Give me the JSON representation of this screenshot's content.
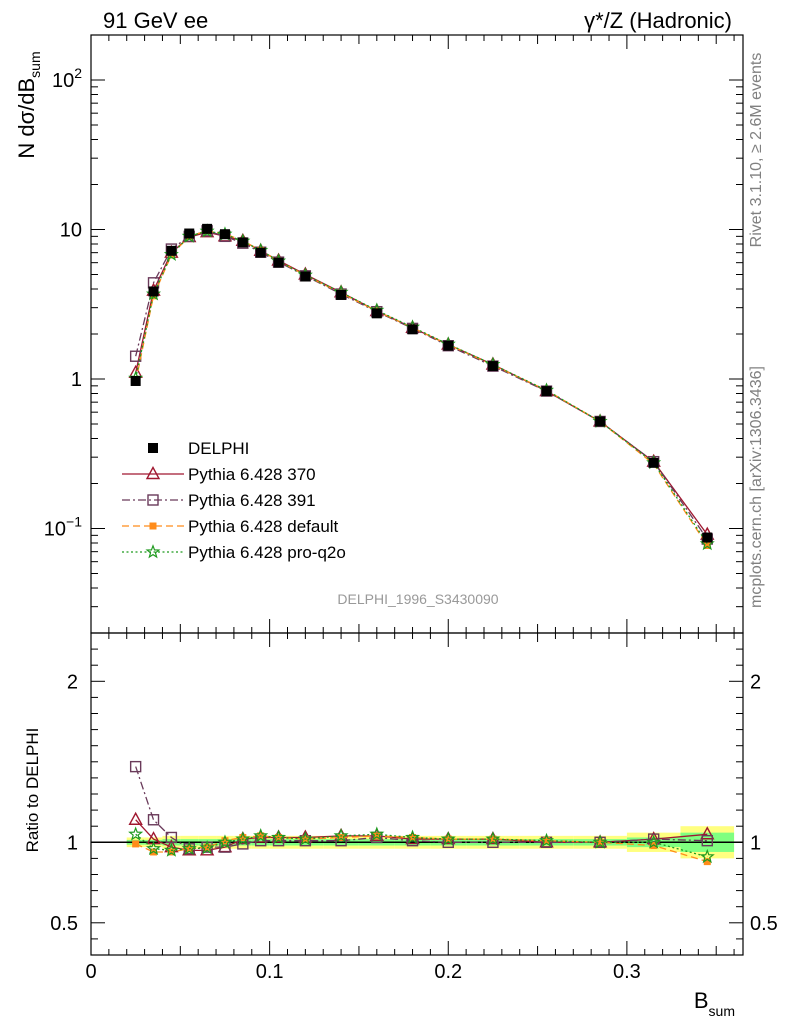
{
  "header": {
    "left": "91 GeV ee",
    "right": "γ*/Z (Hadronic)"
  },
  "side_labels": {
    "rivet": "Rivet 3.1.10, ≥ 2.6M events",
    "mcplots": "mcplots.cern.ch [arXiv:1306.3436]"
  },
  "watermark": "DELPHI_1996_S3430090",
  "colors": {
    "data": "#000000",
    "p370": "#a01830",
    "p391": "#6a3a5a",
    "pdefault": "#ff8c1a",
    "pq2o": "#1f9a1f",
    "band_outer": "#ffff80",
    "band_inner": "#80ff80"
  },
  "chart_data": [
    {
      "type": "scatter",
      "yscale": "log",
      "ylabel": "N dσ/dB_sum",
      "xlim": [
        0,
        0.365
      ],
      "ylim": [
        0.02,
        200
      ],
      "ytick_labels": [
        "10^-1",
        "1",
        "10",
        "10^2"
      ],
      "legend_position": "lower-left",
      "x": [
        0.025,
        0.035,
        0.045,
        0.055,
        0.065,
        0.075,
        0.085,
        0.095,
        0.105,
        0.12,
        0.14,
        0.16,
        0.18,
        0.2,
        0.225,
        0.255,
        0.285,
        0.315,
        0.345
      ],
      "series": [
        {
          "name": "DELPHI",
          "key": "data",
          "marker": "filled-square",
          "values": [
            0.97,
            3.85,
            7.2,
            9.4,
            10.1,
            9.3,
            8.2,
            7.0,
            6.0,
            4.85,
            3.65,
            2.75,
            2.15,
            1.67,
            1.22,
            0.83,
            0.52,
            0.275,
            0.087
          ]
        },
        {
          "name": "Pythia 6.428 370",
          "key": "p370",
          "marker": "open-triangle",
          "line": "solid",
          "values": [
            1.1,
            3.9,
            7.0,
            8.9,
            9.6,
            9.0,
            8.4,
            7.2,
            6.2,
            5.0,
            3.8,
            2.85,
            2.2,
            1.7,
            1.25,
            0.83,
            0.52,
            0.28,
            0.091
          ]
        },
        {
          "name": "Pythia 6.428 391",
          "key": "p391",
          "marker": "open-square",
          "line": "dashdot",
          "values": [
            1.42,
            4.4,
            7.4,
            9.0,
            9.8,
            9.0,
            8.1,
            7.05,
            6.05,
            4.9,
            3.7,
            2.82,
            2.18,
            1.67,
            1.22,
            0.83,
            0.52,
            0.28,
            0.085
          ]
        },
        {
          "name": "Pythia 6.428 default",
          "key": "pdefault",
          "marker": "filled-circle",
          "line": "dashed",
          "values": [
            0.96,
            3.6,
            6.75,
            9.0,
            9.8,
            9.35,
            8.4,
            7.25,
            6.15,
            4.95,
            3.75,
            2.85,
            2.2,
            1.7,
            1.24,
            0.84,
            0.52,
            0.27,
            0.077
          ]
        },
        {
          "name": "Pythia 6.428 pro-q2o",
          "key": "pq2o",
          "marker": "star",
          "line": "dotted",
          "values": [
            1.01,
            3.7,
            6.8,
            9.0,
            9.75,
            9.3,
            8.35,
            7.25,
            6.15,
            4.95,
            3.8,
            2.88,
            2.22,
            1.71,
            1.25,
            0.84,
            0.52,
            0.275,
            0.079
          ]
        }
      ]
    },
    {
      "type": "scatter",
      "xlabel": "B_sum",
      "ylabel": "Ratio to DELPHI",
      "xlim": [
        0,
        0.365
      ],
      "ylim": [
        0.3,
        2.3
      ],
      "ytick_labels": [
        "0.5",
        "1",
        "2"
      ],
      "xtick_labels": [
        "0",
        "0.1",
        "0.2",
        "0.3"
      ],
      "x": [
        0.025,
        0.035,
        0.045,
        0.055,
        0.065,
        0.075,
        0.085,
        0.095,
        0.105,
        0.12,
        0.14,
        0.16,
        0.18,
        0.2,
        0.225,
        0.255,
        0.285,
        0.315,
        0.345
      ],
      "bands": {
        "x_edges": [
          0.02,
          0.03,
          0.04,
          0.05,
          0.06,
          0.07,
          0.08,
          0.09,
          0.1,
          0.11,
          0.13,
          0.15,
          0.17,
          0.19,
          0.21,
          0.24,
          0.27,
          0.3,
          0.33,
          0.36
        ],
        "outer_half": [
          0.03,
          0.03,
          0.04,
          0.04,
          0.04,
          0.04,
          0.04,
          0.04,
          0.04,
          0.04,
          0.04,
          0.04,
          0.04,
          0.04,
          0.04,
          0.04,
          0.04,
          0.06,
          0.1
        ],
        "inner_half": [
          0.015,
          0.015,
          0.02,
          0.02,
          0.02,
          0.02,
          0.02,
          0.02,
          0.02,
          0.02,
          0.02,
          0.02,
          0.02,
          0.02,
          0.02,
          0.02,
          0.02,
          0.03,
          0.06
        ]
      },
      "series": [
        {
          "name": "Pythia 6.428 370",
          "key": "p370",
          "marker": "open-triangle",
          "line": "solid",
          "values": [
            1.14,
            1.02,
            0.97,
            0.95,
            0.95,
            0.97,
            1.02,
            1.03,
            1.03,
            1.03,
            1.04,
            1.04,
            1.02,
            1.02,
            1.02,
            1.0,
            1.0,
            1.02,
            1.05
          ]
        },
        {
          "name": "Pythia 6.428 391",
          "key": "p391",
          "marker": "open-square",
          "line": "dashdot",
          "values": [
            1.47,
            1.14,
            1.03,
            0.96,
            0.97,
            0.97,
            0.99,
            1.01,
            1.01,
            1.01,
            1.01,
            1.03,
            1.01,
            1.0,
            1.0,
            1.0,
            1.0,
            1.02,
            1.01
          ]
        },
        {
          "name": "Pythia 6.428 default",
          "key": "pdefault",
          "marker": "filled-circle",
          "line": "dashed",
          "values": [
            0.99,
            0.94,
            0.94,
            0.96,
            0.97,
            1.01,
            1.03,
            1.04,
            1.03,
            1.02,
            1.03,
            1.04,
            1.03,
            1.02,
            1.02,
            1.01,
            1.0,
            0.98,
            0.88
          ]
        },
        {
          "name": "Pythia 6.428 pro-q2o",
          "key": "pq2o",
          "marker": "star",
          "line": "dotted",
          "values": [
            1.05,
            0.96,
            0.95,
            0.96,
            0.965,
            1.0,
            1.02,
            1.04,
            1.03,
            1.02,
            1.04,
            1.05,
            1.03,
            1.02,
            1.02,
            1.01,
            1.0,
            1.0,
            0.91
          ]
        }
      ]
    }
  ]
}
